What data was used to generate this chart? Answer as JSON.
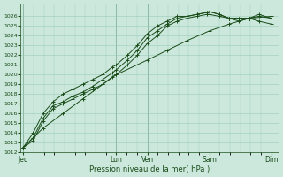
{
  "background_color": "#cce8dc",
  "grid_color": "#99ccbb",
  "line_color": "#1a4d1a",
  "marker": "+",
  "xlabel": "Pression niveau de la mer( hPa )",
  "ylim": [
    1012,
    1027
  ],
  "yticks": [
    1012,
    1013,
    1014,
    1015,
    1016,
    1017,
    1018,
    1019,
    1020,
    1021,
    1022,
    1023,
    1024,
    1025,
    1026
  ],
  "xtick_labels": [
    "Jeu",
    "Lun",
    "Ven",
    "Sam",
    "Dim"
  ],
  "xtick_positions": [
    0.0,
    0.375,
    0.5,
    0.75,
    1.0
  ],
  "series_x": [
    [
      0.0,
      0.04,
      0.08,
      0.12,
      0.16,
      0.2,
      0.24,
      0.28,
      0.32,
      0.36,
      0.375,
      0.42,
      0.46,
      0.5,
      0.54,
      0.58,
      0.62,
      0.66,
      0.7,
      0.74,
      0.75,
      0.79,
      0.83,
      0.87,
      0.91,
      0.95,
      1.0
    ],
    [
      0.0,
      0.04,
      0.08,
      0.12,
      0.16,
      0.2,
      0.24,
      0.28,
      0.32,
      0.36,
      0.375,
      0.42,
      0.46,
      0.5,
      0.54,
      0.58,
      0.62,
      0.66,
      0.7,
      0.74,
      0.75,
      0.79,
      0.83,
      0.87,
      0.91,
      0.95,
      1.0
    ],
    [
      0.0,
      0.04,
      0.08,
      0.12,
      0.16,
      0.2,
      0.24,
      0.28,
      0.32,
      0.36,
      0.375,
      0.42,
      0.46,
      0.5,
      0.54,
      0.58,
      0.62,
      0.66,
      0.7,
      0.74,
      0.75,
      0.79,
      0.83,
      0.87,
      0.91,
      0.95,
      1.0
    ],
    [
      0.0,
      0.08,
      0.16,
      0.24,
      0.32,
      0.375,
      0.5,
      0.58,
      0.66,
      0.75,
      0.83,
      0.91,
      1.0
    ]
  ],
  "series_y": [
    [
      1012.5,
      1013.2,
      1015.2,
      1016.5,
      1017.0,
      1017.5,
      1018.0,
      1018.5,
      1019.0,
      1019.8,
      1020.0,
      1021.0,
      1022.0,
      1023.2,
      1024.0,
      1025.0,
      1025.5,
      1025.8,
      1026.0,
      1026.2,
      1026.2,
      1026.0,
      1025.8,
      1025.8,
      1025.8,
      1026.0,
      1025.8
    ],
    [
      1012.5,
      1013.5,
      1015.5,
      1016.8,
      1017.2,
      1017.8,
      1018.2,
      1018.8,
      1019.5,
      1020.2,
      1020.5,
      1021.5,
      1022.5,
      1023.8,
      1024.5,
      1025.2,
      1025.8,
      1026.0,
      1026.2,
      1026.4,
      1026.5,
      1026.2,
      1025.8,
      1025.8,
      1025.8,
      1026.2,
      1025.8
    ],
    [
      1012.5,
      1014.0,
      1016.0,
      1017.2,
      1018.0,
      1018.5,
      1019.0,
      1019.5,
      1020.0,
      1020.8,
      1021.0,
      1022.0,
      1023.0,
      1024.2,
      1025.0,
      1025.5,
      1026.0,
      1026.0,
      1026.2,
      1026.4,
      1026.5,
      1026.2,
      1025.8,
      1025.5,
      1025.8,
      1025.5,
      1025.2
    ],
    [
      1012.5,
      1014.5,
      1016.0,
      1017.5,
      1019.0,
      1020.0,
      1021.5,
      1022.5,
      1023.5,
      1024.5,
      1025.2,
      1025.8,
      1026.0
    ]
  ],
  "figsize": [
    3.2,
    2.0
  ],
  "dpi": 100
}
